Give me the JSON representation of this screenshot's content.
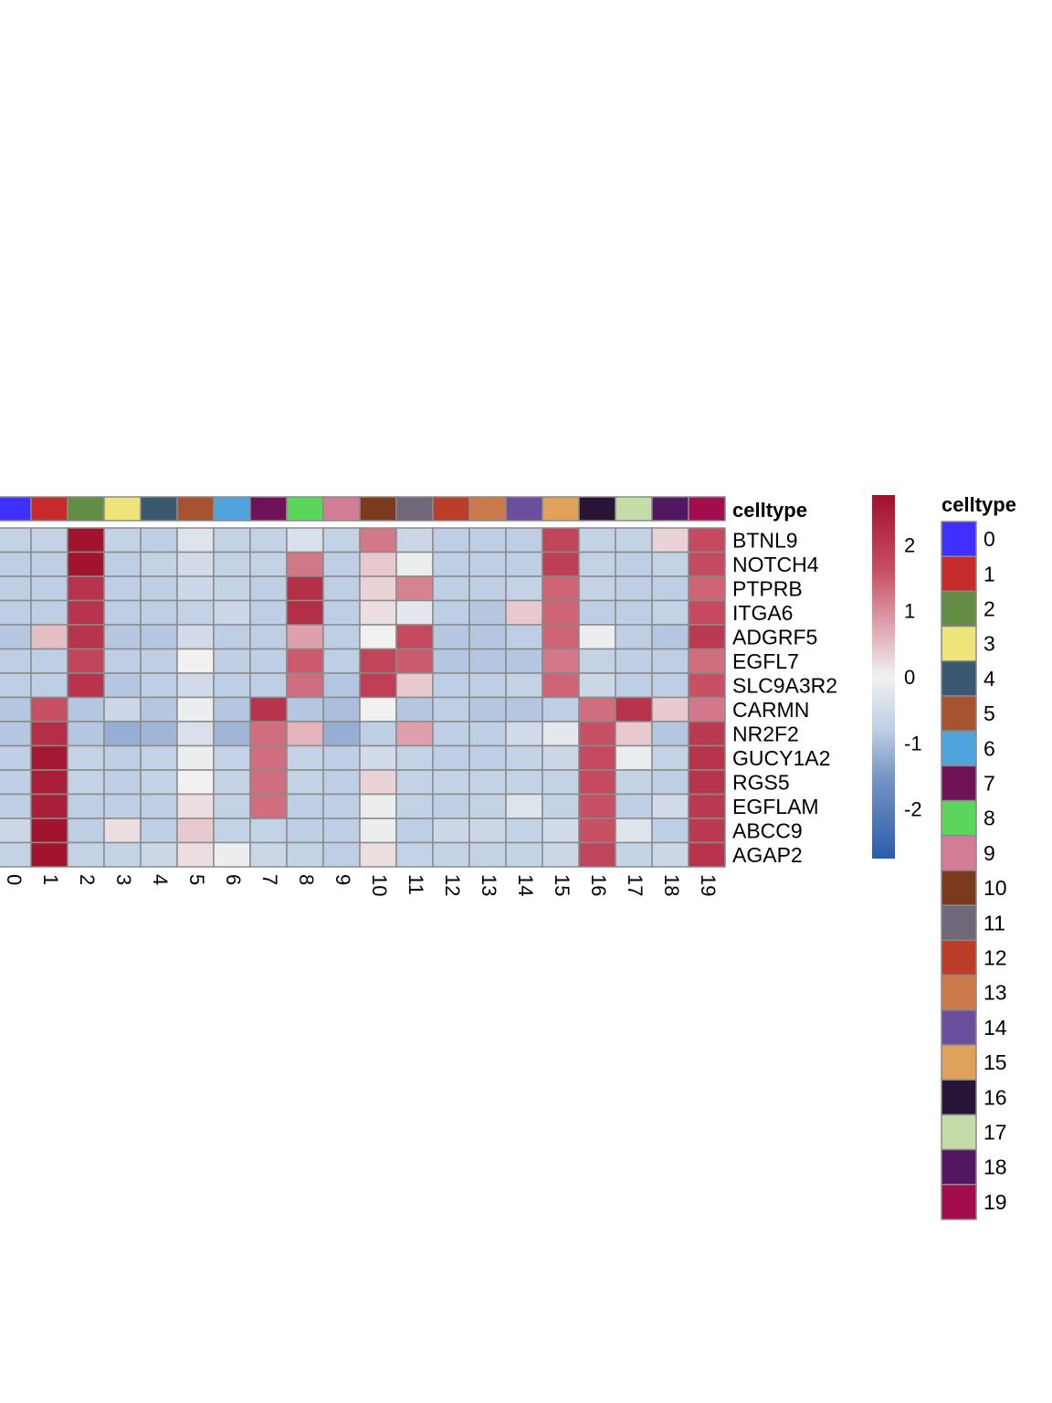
{
  "chart_data": {
    "type": "heatmap",
    "annotation_label": "celltype",
    "columns": [
      "0",
      "1",
      "2",
      "3",
      "4",
      "5",
      "6",
      "7",
      "8",
      "9",
      "10",
      "11",
      "12",
      "13",
      "14",
      "15",
      "16",
      "17",
      "18",
      "19"
    ],
    "rows": [
      "BTNL9",
      "NOTCH4",
      "PTPRB",
      "ITGA6",
      "ADGRF5",
      "EGFL7",
      "SLC9A3R2",
      "CARMN",
      "NR2F2",
      "GUCY1A2",
      "RGS5",
      "EGFLAM",
      "ABCC9",
      "AGAP2"
    ],
    "values": [
      [
        -0.7,
        -0.7,
        2.7,
        -0.7,
        -0.8,
        -0.3,
        -0.7,
        -0.7,
        -0.4,
        -0.7,
        1.2,
        -0.6,
        -0.8,
        -0.8,
        -0.8,
        1.8,
        -0.7,
        -0.7,
        0.3,
        1.7
      ],
      [
        -0.8,
        -0.8,
        2.7,
        -0.8,
        -0.7,
        -0.5,
        -0.7,
        -0.7,
        1.2,
        -0.8,
        0.4,
        -0.1,
        -0.8,
        -0.8,
        -0.8,
        1.9,
        -0.7,
        -0.8,
        -0.7,
        1.7
      ],
      [
        -0.8,
        -0.8,
        2.1,
        -0.8,
        -0.8,
        -0.6,
        -0.7,
        -0.8,
        2.2,
        -0.8,
        0.3,
        1.1,
        -0.8,
        -0.8,
        -0.7,
        1.4,
        -0.7,
        -0.8,
        -0.8,
        1.4
      ],
      [
        -0.8,
        -0.8,
        2.1,
        -0.8,
        -0.8,
        -0.7,
        -0.6,
        -0.8,
        2.2,
        -0.8,
        0.2,
        -0.2,
        -0.8,
        -0.9,
        0.4,
        1.4,
        -0.8,
        -0.8,
        -0.7,
        1.7
      ],
      [
        -0.9,
        0.5,
        2.1,
        -0.9,
        -0.9,
        -0.5,
        -0.8,
        -0.8,
        0.8,
        -0.8,
        0.0,
        1.7,
        -0.9,
        -0.9,
        -0.8,
        1.4,
        -0.1,
        -0.8,
        -0.9,
        2.0
      ],
      [
        -0.8,
        -0.8,
        1.8,
        -0.8,
        -0.8,
        0.0,
        -0.8,
        -0.8,
        1.5,
        -0.8,
        1.8,
        1.5,
        -0.9,
        -0.9,
        -0.9,
        1.2,
        -0.7,
        -0.8,
        -0.8,
        1.3
      ],
      [
        -0.8,
        -0.8,
        2.1,
        -0.9,
        -0.8,
        -0.5,
        -0.8,
        -0.8,
        1.3,
        -0.9,
        1.9,
        0.4,
        -0.8,
        -0.8,
        -0.7,
        1.4,
        -0.6,
        -0.8,
        -0.8,
        1.6
      ],
      [
        -0.9,
        1.6,
        -0.9,
        -0.6,
        -0.9,
        -0.1,
        -0.9,
        2.1,
        -0.9,
        -1.0,
        0.0,
        -0.9,
        -0.8,
        -0.9,
        -0.9,
        -0.8,
        1.3,
        2.1,
        0.4,
        1.2
      ],
      [
        -0.9,
        2.2,
        -0.9,
        -1.2,
        -1.1,
        -0.4,
        -1.1,
        1.3,
        0.6,
        -1.2,
        -0.8,
        0.8,
        -0.8,
        -0.8,
        -0.5,
        -0.2,
        1.6,
        0.4,
        -0.9,
        2.0
      ],
      [
        -0.8,
        2.6,
        -0.7,
        -0.8,
        -0.7,
        -0.1,
        -0.7,
        1.3,
        -0.7,
        -0.8,
        -0.5,
        -0.7,
        -0.8,
        -0.8,
        -0.7,
        -0.6,
        1.7,
        -0.1,
        -0.7,
        2.1
      ],
      [
        -0.8,
        2.5,
        -0.7,
        -0.8,
        -0.7,
        0.0,
        -0.7,
        1.3,
        -0.7,
        -0.8,
        0.3,
        -0.7,
        -0.7,
        -0.7,
        -0.7,
        -0.7,
        1.7,
        -0.7,
        -0.8,
        2.1
      ],
      [
        -0.8,
        2.5,
        -0.8,
        -0.8,
        -0.8,
        0.2,
        -0.7,
        1.3,
        -0.8,
        -0.8,
        -0.1,
        -0.7,
        -0.8,
        -0.7,
        -0.3,
        -0.7,
        1.6,
        -0.8,
        -0.5,
        2.0
      ],
      [
        -0.6,
        2.7,
        -0.8,
        0.2,
        -0.8,
        0.4,
        -0.7,
        -0.7,
        -0.8,
        -0.8,
        -0.1,
        -0.8,
        -0.6,
        -0.6,
        -0.7,
        -0.5,
        1.6,
        -0.3,
        -0.8,
        2.0
      ],
      [
        -0.7,
        2.7,
        -0.7,
        -0.7,
        -0.6,
        0.2,
        -0.1,
        -0.6,
        -0.7,
        -0.8,
        0.2,
        -0.7,
        -0.7,
        -0.7,
        -0.7,
        -0.6,
        1.8,
        -0.7,
        -0.6,
        2.1
      ]
    ],
    "annotation_colors": [
      "#4030ff",
      "#c62a2a",
      "#638d45",
      "#eee47a",
      "#3a5870",
      "#a8532f",
      "#4ea4db",
      "#6f1257",
      "#5cd65a",
      "#d27c96",
      "#7c3a1c",
      "#71677b",
      "#bc3e28",
      "#cc7a4a",
      "#6b4f9f",
      "#e0a25a",
      "#281437",
      "#c3dca8",
      "#531660",
      "#a30c4d"
    ],
    "colorbar": {
      "range": [
        -2.75,
        2.75
      ],
      "ticks": [
        2,
        1,
        0,
        -1,
        -2
      ],
      "tick_labels": [
        "2",
        "1",
        "0",
        "-1",
        "-2"
      ],
      "colors": [
        "#2a5da8",
        "#4a7fc0",
        "#f1f1f1",
        "#d45b74",
        "#a0102c"
      ]
    },
    "legend": {
      "title": "celltype",
      "labels": [
        "0",
        "1",
        "2",
        "3",
        "4",
        "5",
        "6",
        "7",
        "8",
        "9",
        "10",
        "11",
        "12",
        "13",
        "14",
        "15",
        "16",
        "17",
        "18",
        "19"
      ]
    }
  }
}
